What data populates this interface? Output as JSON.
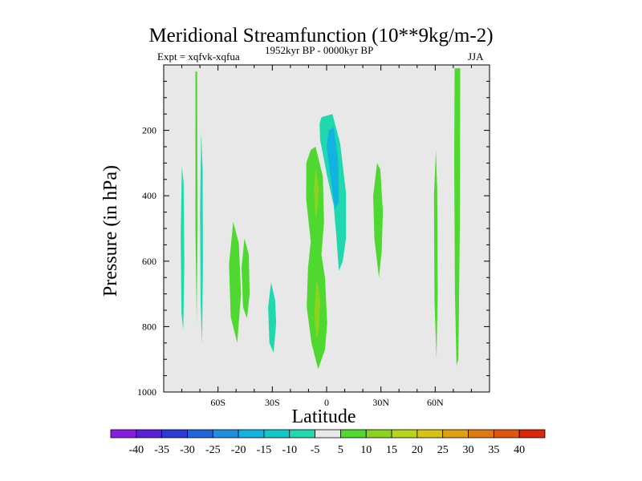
{
  "chart_data": {
    "type": "contour",
    "title": "Meridional Streamfunction (10**9kg/m-2)",
    "subtitle_left": "Expt = xqfvk-xqfua",
    "subtitle_center": "1952kyr BP - 0000kyr BP",
    "subtitle_right": "JJA",
    "xlabel": "Latitude",
    "ylabel": "Pressure (in hPa)",
    "xlim": [
      -90,
      90
    ],
    "ylim": [
      1000,
      0
    ],
    "x_ticks": [
      {
        "value": -60,
        "label": "60S"
      },
      {
        "value": -30,
        "label": "30S"
      },
      {
        "value": 0,
        "label": "0"
      },
      {
        "value": 30,
        "label": "30N"
      },
      {
        "value": 60,
        "label": "60N"
      }
    ],
    "y_ticks": [
      {
        "value": 200,
        "label": "200"
      },
      {
        "value": 400,
        "label": "400"
      },
      {
        "value": 600,
        "label": "600"
      },
      {
        "value": 800,
        "label": "800"
      },
      {
        "value": 1000,
        "label": "1000"
      }
    ],
    "background_color": "#e8e8e8",
    "colorbar": {
      "levels": [
        "-40",
        "-35",
        "-30",
        "-25",
        "-20",
        "-15",
        "-10",
        "-5",
        "5",
        "10",
        "15",
        "20",
        "25",
        "30",
        "35",
        "40"
      ],
      "colors": [
        "#8a1ee0",
        "#5a1fd6",
        "#2c3cd4",
        "#1f66d8",
        "#1f8fe0",
        "#12b3e0",
        "#10c8c8",
        "#20d8b0",
        "#e8e8e8",
        "#4ed830",
        "#8ad420",
        "#b8d41a",
        "#d8c410",
        "#e0a010",
        "#e07a10",
        "#e05510",
        "#d82808"
      ]
    },
    "regions": [
      {
        "name": "green-cell-78S",
        "color": "#4ed830",
        "points": [
          [
            -72.5,
            20
          ],
          [
            -71.5,
            20
          ],
          [
            -71.3,
            500
          ],
          [
            -71.8,
            790
          ],
          [
            -72.5,
            500
          ]
        ]
      },
      {
        "name": "cyan-cell-80S",
        "color": "#20d8b0",
        "points": [
          [
            -80,
            310
          ],
          [
            -79,
            360
          ],
          [
            -78.6,
            600
          ],
          [
            -79.2,
            810
          ],
          [
            -80.2,
            760
          ],
          [
            -80.6,
            520
          ]
        ]
      },
      {
        "name": "cyan-cell-69S",
        "color": "#20d8b0",
        "points": [
          [
            -69.3,
            205
          ],
          [
            -68.5,
            320
          ],
          [
            -68.3,
            600
          ],
          [
            -68.8,
            855
          ],
          [
            -69.6,
            730
          ],
          [
            -69.9,
            450
          ]
        ]
      },
      {
        "name": "green-cell-52S",
        "color": "#4ed830",
        "points": [
          [
            -51.6,
            480
          ],
          [
            -48.5,
            545
          ],
          [
            -47.3,
            700
          ],
          [
            -49.4,
            850
          ],
          [
            -53,
            770
          ],
          [
            -53.9,
            610
          ]
        ]
      },
      {
        "name": "green-cell-46S",
        "color": "#4ed830",
        "points": [
          [
            -45.4,
            530
          ],
          [
            -43,
            580
          ],
          [
            -42.5,
            700
          ],
          [
            -44,
            775
          ],
          [
            -46.2,
            740
          ],
          [
            -47,
            620
          ]
        ]
      },
      {
        "name": "cyan-cell-30S",
        "color": "#20d8b0",
        "points": [
          [
            -30.7,
            665
          ],
          [
            -28.4,
            720
          ],
          [
            -27.9,
            790
          ],
          [
            -29.3,
            880
          ],
          [
            -31.6,
            850
          ],
          [
            -32.3,
            740
          ]
        ]
      },
      {
        "name": "green-column-7S",
        "color": "#4ed830",
        "points": [
          [
            -8.8,
            260
          ],
          [
            -6.1,
            250
          ],
          [
            -2.1,
            340
          ],
          [
            -1.4,
            480
          ],
          [
            -2.9,
            580
          ],
          [
            -0.9,
            650
          ],
          [
            0.3,
            790
          ],
          [
            -0.9,
            870
          ],
          [
            -4.7,
            930
          ],
          [
            -8.4,
            850
          ],
          [
            -11,
            740
          ],
          [
            -10.3,
            620
          ],
          [
            -8.8,
            540
          ],
          [
            -11.3,
            410
          ],
          [
            -11.2,
            300
          ]
        ]
      },
      {
        "name": "yellowgreen-core-upper",
        "color": "#8ad420",
        "points": [
          [
            -6.1,
            310
          ],
          [
            -4.3,
            380
          ],
          [
            -5,
            440
          ],
          [
            -6.1,
            470
          ],
          [
            -7,
            380
          ]
        ]
      },
      {
        "name": "yellowgreen-core-lower",
        "color": "#8ad420",
        "points": [
          [
            -5.4,
            650
          ],
          [
            -3.6,
            720
          ],
          [
            -4.3,
            810
          ],
          [
            -5.7,
            840
          ],
          [
            -6.8,
            760
          ]
        ]
      },
      {
        "name": "cyan-cell-eq",
        "color": "#20d8b0",
        "points": [
          [
            -2.9,
            160
          ],
          [
            3.2,
            150
          ],
          [
            7.5,
            240
          ],
          [
            10.7,
            390
          ],
          [
            10.7,
            530
          ],
          [
            8.9,
            600
          ],
          [
            6.8,
            630
          ],
          [
            5.3,
            520
          ],
          [
            3.9,
            430
          ],
          [
            0.3,
            340
          ],
          [
            -3.6,
            230
          ],
          [
            -3.9,
            180
          ]
        ]
      },
      {
        "name": "blue-core-eq",
        "color": "#12b3e0",
        "points": [
          [
            1.1,
            200
          ],
          [
            3.9,
            190
          ],
          [
            6.4,
            290
          ],
          [
            6.8,
            420
          ],
          [
            4.6,
            440
          ],
          [
            1.8,
            330
          ],
          [
            0,
            250
          ]
        ]
      },
      {
        "name": "green-cell-27N",
        "color": "#4ed830",
        "points": [
          [
            27.9,
            300
          ],
          [
            29.7,
            320
          ],
          [
            31.1,
            450
          ],
          [
            30.4,
            570
          ],
          [
            28.9,
            650
          ],
          [
            26.4,
            530
          ],
          [
            25.7,
            400
          ]
        ]
      },
      {
        "name": "green-column-60N",
        "color": "#4ed830",
        "points": [
          [
            60.4,
            260
          ],
          [
            61.1,
            380
          ],
          [
            61.4,
            700
          ],
          [
            60.7,
            900
          ],
          [
            59.6,
            720
          ],
          [
            59.3,
            400
          ]
        ]
      },
      {
        "name": "green-column-72N",
        "color": "#4ed830",
        "points": [
          [
            70.7,
            10
          ],
          [
            73.8,
            10
          ],
          [
            73.6,
            500
          ],
          [
            72.8,
            900
          ],
          [
            71.8,
            920
          ],
          [
            70.9,
            700
          ],
          [
            70.5,
            300
          ]
        ]
      }
    ]
  }
}
